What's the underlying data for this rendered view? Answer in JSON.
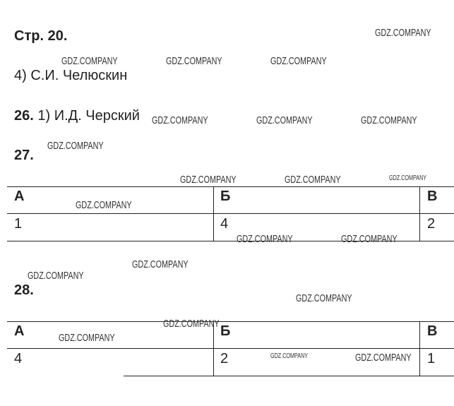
{
  "page_header": "Стр. 20.",
  "answers": [
    {
      "text": "4) С.И. Челюскин"
    },
    {
      "number": "26.",
      "text": "1) И.Д. Черский"
    },
    {
      "number": "27."
    },
    {
      "number": "28."
    }
  ],
  "table27": {
    "headers": [
      "А",
      "Б",
      "В"
    ],
    "values": [
      "1",
      "4",
      "2"
    ]
  },
  "table28": {
    "headers": [
      "А",
      "Б",
      "В"
    ],
    "values": [
      "4",
      "2",
      "1"
    ]
  },
  "watermark": "GDZ.COMPANY"
}
